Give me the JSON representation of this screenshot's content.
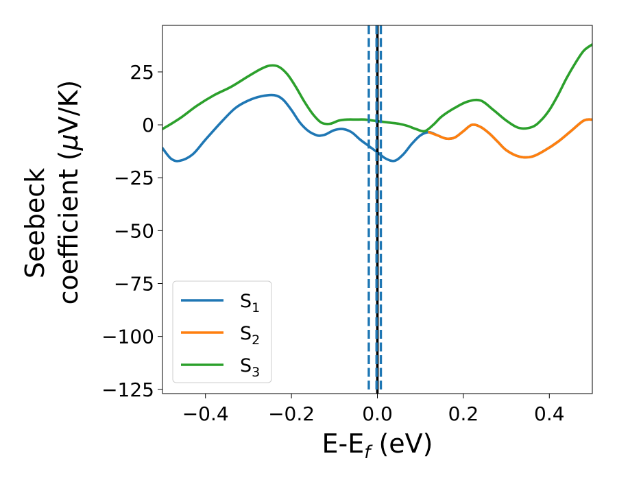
{
  "chart_data": {
    "type": "line",
    "xlabel": {
      "main": "E-E",
      "sub": "f",
      "unit": " (eV)"
    },
    "ylabel": {
      "line1": "Seebeck",
      "line2_pre": "coefficient  (",
      "mu": "μ",
      "line2_post": "V/K)"
    },
    "xlim": [
      -0.5,
      0.5
    ],
    "ylim": [
      -127,
      47
    ],
    "xticks": [
      -0.4,
      -0.2,
      0.0,
      0.2,
      0.4
    ],
    "xtick_labels": [
      "−0.4",
      "−0.2",
      "0.0",
      "0.2",
      "0.4"
    ],
    "yticks": [
      25,
      0,
      -25,
      -50,
      -75,
      -100,
      -125
    ],
    "ytick_labels": [
      "25",
      "0",
      "−25",
      "−50",
      "−75",
      "−100",
      "−125"
    ],
    "grid": false,
    "legend_position": "lower-left",
    "vlines": [
      {
        "x": 0.0,
        "style": "solid",
        "color": "#000000"
      },
      {
        "x": -0.02,
        "style": "dashed",
        "color": "#1f77b4"
      },
      {
        "x": -0.002,
        "style": "dashed",
        "color": "#1f77b4"
      },
      {
        "x": 0.008,
        "style": "dashed",
        "color": "#1f77b4"
      }
    ],
    "series": [
      {
        "name": "S1",
        "label_main": "S",
        "label_sub": "1",
        "color": "#1f77b4",
        "x": [
          -0.5,
          -0.48,
          -0.46,
          -0.43,
          -0.4,
          -0.36,
          -0.33,
          -0.3,
          -0.27,
          -0.24,
          -0.22,
          -0.2,
          -0.18,
          -0.16,
          -0.14,
          -0.13,
          -0.12,
          -0.1,
          -0.08,
          -0.06,
          -0.04,
          -0.02,
          0.0,
          0.02,
          0.04,
          0.06,
          0.08,
          0.1,
          0.12,
          0.14,
          0.16,
          0.18,
          0.2,
          0.22,
          0.24,
          0.26,
          0.28,
          0.3,
          0.33,
          0.36,
          0.39,
          0.42,
          0.45,
          0.48,
          0.5
        ],
        "y": [
          -11,
          -16,
          -17,
          -14,
          -7,
          2,
          8,
          11.5,
          13.5,
          14,
          12,
          7,
          1,
          -3,
          -5,
          -5,
          -4.5,
          -2.5,
          -2,
          -3.5,
          -7,
          -10,
          -13,
          -16,
          -17,
          -14,
          -9,
          -5,
          -3.5,
          -5,
          -6.5,
          -6,
          -3,
          0,
          -1,
          -4,
          -8,
          -12,
          -15,
          -15,
          -12,
          -8,
          -3,
          2,
          2.5
        ]
      },
      {
        "name": "S2",
        "label_main": "S",
        "label_sub": "2",
        "color": "#ff7f0e",
        "x": [
          0.12,
          0.14,
          0.16,
          0.18,
          0.2,
          0.22,
          0.24,
          0.26,
          0.28,
          0.3,
          0.33,
          0.36,
          0.39,
          0.42,
          0.45,
          0.48,
          0.5
        ],
        "y": [
          -3.5,
          -5,
          -6.5,
          -6,
          -3,
          0,
          -1,
          -4,
          -8,
          -12,
          -15,
          -15,
          -12,
          -8,
          -3,
          2,
          2.5
        ]
      },
      {
        "name": "S3",
        "label_main": "S",
        "label_sub": "3",
        "color": "#2ca02c",
        "x": [
          -0.5,
          -0.46,
          -0.42,
          -0.38,
          -0.34,
          -0.3,
          -0.27,
          -0.25,
          -0.23,
          -0.21,
          -0.19,
          -0.17,
          -0.15,
          -0.13,
          -0.11,
          -0.09,
          -0.07,
          -0.05,
          -0.03,
          -0.01,
          0.01,
          0.03,
          0.05,
          0.07,
          0.09,
          0.11,
          0.13,
          0.15,
          0.18,
          0.21,
          0.24,
          0.27,
          0.3,
          0.33,
          0.36,
          0.38,
          0.4,
          0.42,
          0.44,
          0.46,
          0.48,
          0.5
        ],
        "y": [
          -2,
          3,
          9,
          14,
          18,
          23,
          26.5,
          28,
          27.5,
          24,
          18,
          11,
          5,
          1,
          0.5,
          2,
          2.5,
          2.5,
          2.5,
          2,
          1.5,
          1,
          0.5,
          -0.5,
          -2,
          -3,
          0,
          4,
          8,
          11,
          11.5,
          7,
          2,
          -1.5,
          -1,
          2,
          7,
          14,
          22,
          29,
          35,
          38
        ]
      }
    ]
  }
}
